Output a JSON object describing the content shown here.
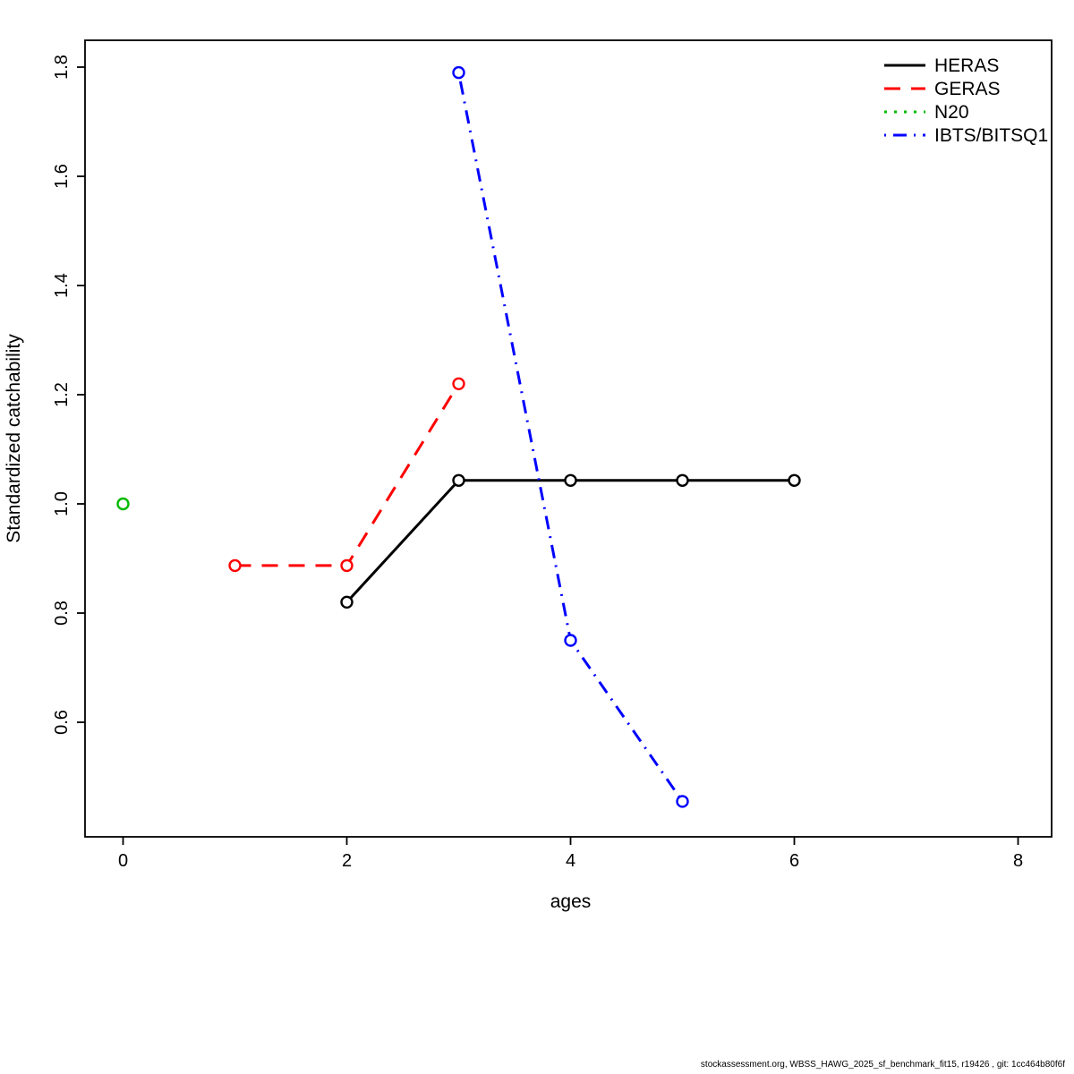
{
  "chart_data": {
    "type": "line",
    "title": "",
    "xlabel": "ages",
    "ylabel": "Standardized catchability",
    "xlim": [
      -0.3,
      8.3
    ],
    "ylim": [
      0.4,
      1.85
    ],
    "grid": false,
    "xticks": [
      0,
      2,
      4,
      6,
      8
    ],
    "yticks": [
      0.6,
      0.8,
      1.0,
      1.2,
      1.4,
      1.6,
      1.8
    ],
    "legend_position": "top-right",
    "marker": "open-circle",
    "series": [
      {
        "name": "HERAS",
        "color": "#000000",
        "dash": "solid",
        "x": [
          2,
          3,
          4,
          5,
          6
        ],
        "y": [
          0.82,
          1.043,
          1.043,
          1.043,
          1.043
        ]
      },
      {
        "name": "GERAS",
        "color": "#ff0000",
        "dash": "dashed",
        "x": [
          1,
          2,
          3
        ],
        "y": [
          0.887,
          0.887,
          1.22
        ]
      },
      {
        "name": "N20",
        "color": "#00bb00",
        "dash": "dotted",
        "x": [
          0
        ],
        "y": [
          1.0
        ]
      },
      {
        "name": "IBTS/BITSQ1",
        "color": "#0000ff",
        "dash": "dashdot",
        "x": [
          3,
          4,
          5
        ],
        "y": [
          1.79,
          0.75,
          0.455
        ]
      }
    ]
  },
  "footer": {
    "text": "stockassessment.org, WBSS_HAWG_2025_sf_benchmark_fit15, r19426 , git: 1cc464b80f6f"
  }
}
